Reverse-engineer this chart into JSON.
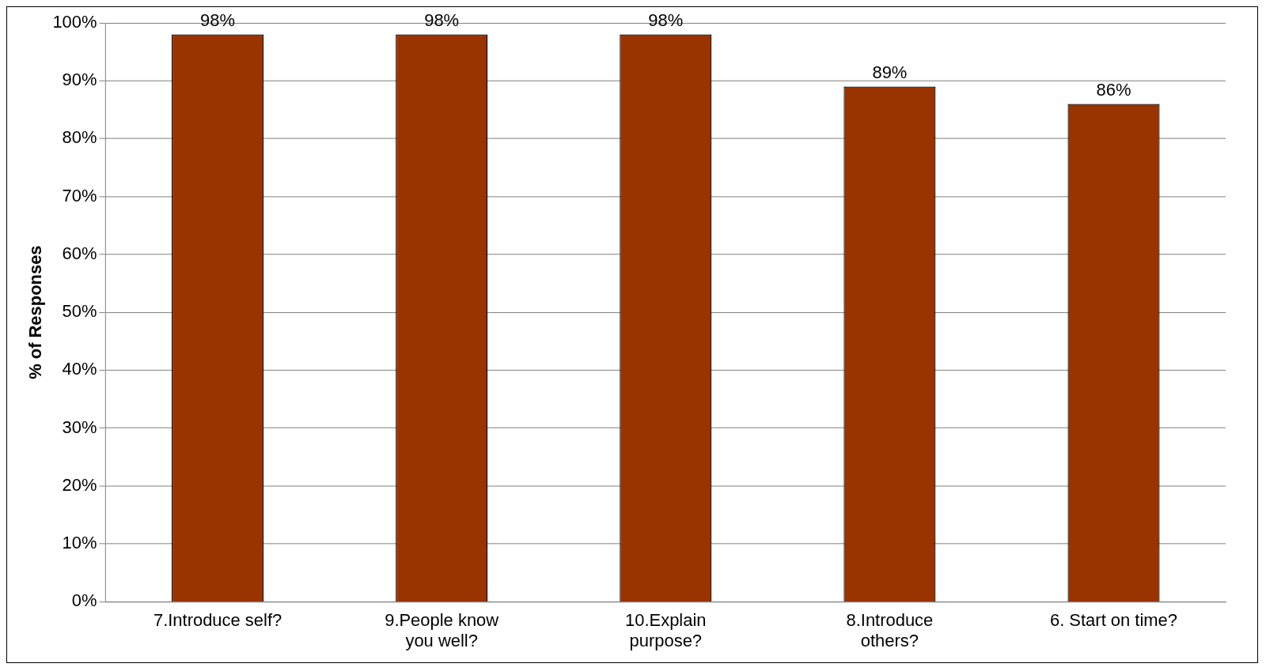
{
  "chart_data": {
    "type": "bar",
    "ylabel": "% of Responses",
    "categories": [
      "7.Introduce self?",
      "9.People know you well?",
      "10.Explain purpose?",
      "8.Introduce others?",
      "6. Start on time?"
    ],
    "values": [
      98,
      98,
      98,
      89,
      86
    ],
    "value_labels": [
      "98%",
      "98%",
      "98%",
      "89%",
      "86%"
    ],
    "color": "#993300",
    "ylim": [
      0,
      100
    ],
    "yticks": [
      {
        "value": 0,
        "label": "0%"
      },
      {
        "value": 10,
        "label": "10%"
      },
      {
        "value": 20,
        "label": "20%"
      },
      {
        "value": 30,
        "label": "30%"
      },
      {
        "value": 40,
        "label": "40%"
      },
      {
        "value": 50,
        "label": "50%"
      },
      {
        "value": 60,
        "label": "60%"
      },
      {
        "value": 70,
        "label": "70%"
      },
      {
        "value": 80,
        "label": "80%"
      },
      {
        "value": 90,
        "label": "90%"
      },
      {
        "value": 100,
        "label": "100%"
      }
    ],
    "grid": "y",
    "legend": false
  }
}
